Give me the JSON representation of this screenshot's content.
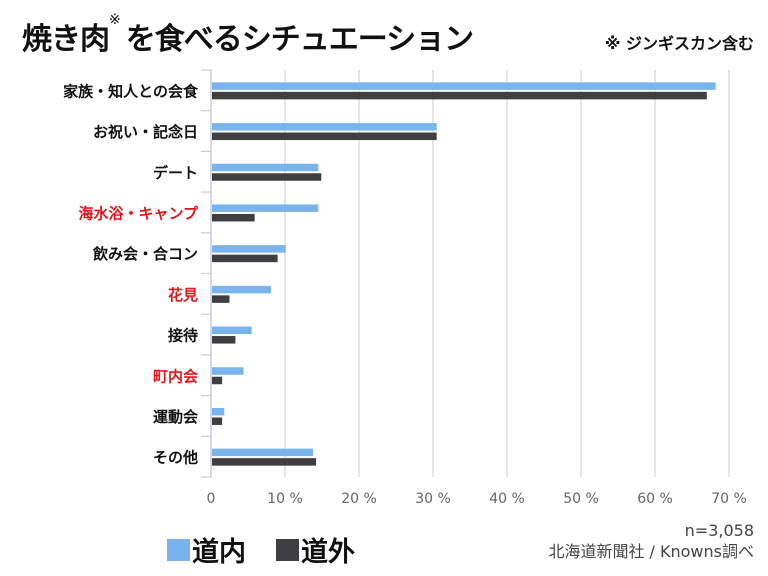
{
  "title": {
    "main": "焼き肉",
    "mark": "※",
    "rest": "を食べるシチュエーション"
  },
  "note": "※ ジンギスカン含む",
  "legend": [
    {
      "label": "道内",
      "color": "#7ab4ec"
    },
    {
      "label": "道外",
      "color": "#3f3f42"
    }
  ],
  "sample_size": "n=3,058",
  "source": "北海道新聞社 / Knowns調べ",
  "chart_data": {
    "type": "bar",
    "orientation": "horizontal",
    "title": "焼き肉※を食べるシチュエーション",
    "xlabel": "",
    "ylabel": "",
    "xlim": [
      0,
      70
    ],
    "x_ticks": [
      {
        "value": 0,
        "label": "0"
      },
      {
        "value": 10,
        "label": "10 %"
      },
      {
        "value": 20,
        "label": "20 %"
      },
      {
        "value": 30,
        "label": "30 %"
      },
      {
        "value": 40,
        "label": "40 %"
      },
      {
        "value": 50,
        "label": "50 %"
      },
      {
        "value": 60,
        "label": "60 %"
      },
      {
        "value": 70,
        "label": "70 %"
      }
    ],
    "grid": true,
    "legend_position": "bottom-left",
    "categories": [
      {
        "label": "家族・知人との会食",
        "highlight": false
      },
      {
        "label": "お祝い・記念日",
        "highlight": false
      },
      {
        "label": "デート",
        "highlight": false
      },
      {
        "label": "海水浴・キャンプ",
        "highlight": true
      },
      {
        "label": "飲み会・合コン",
        "highlight": false
      },
      {
        "label": "花見",
        "highlight": true
      },
      {
        "label": "接待",
        "highlight": false
      },
      {
        "label": "町内会",
        "highlight": true
      },
      {
        "label": "運動会",
        "highlight": false
      },
      {
        "label": "その他",
        "highlight": false
      }
    ],
    "series": [
      {
        "name": "道内",
        "color": "#7ab4ec",
        "values": [
          68.2,
          30.5,
          14.5,
          14.5,
          10.1,
          8.1,
          5.5,
          4.4,
          1.8,
          13.8
        ]
      },
      {
        "name": "道外",
        "color": "#3f3f42",
        "values": [
          67.0,
          30.5,
          14.9,
          5.9,
          9.0,
          2.5,
          3.3,
          1.5,
          1.5,
          14.2
        ]
      }
    ],
    "highlight_color": "#e8141c",
    "label_color": "#111111",
    "grid_color": "#dddddd",
    "axis_color": "#c5cfdd"
  }
}
